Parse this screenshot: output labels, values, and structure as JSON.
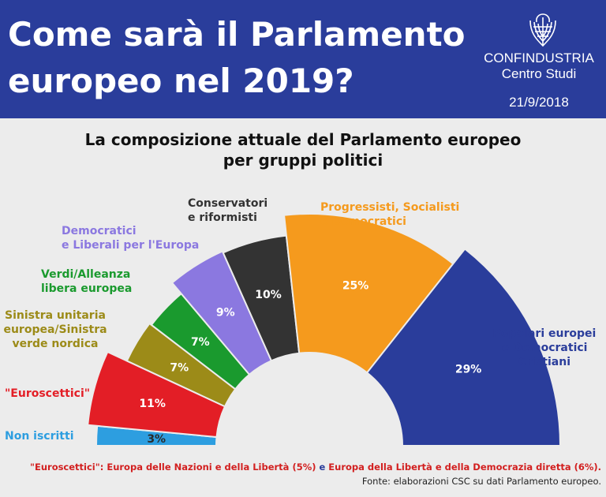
{
  "header": {
    "title_line1": "Come sarà il Parlamento",
    "title_line2": "europeo nel 2019?",
    "brand": "CONFINDUSTRIA",
    "brand_sub": "Centro Studi",
    "date": "21/9/2018",
    "logo_icon": "confindustria-eagle-icon"
  },
  "chart_data": {
    "type": "pie",
    "variant": "half-donut",
    "title": "La composizione attuale del Parlamento europeo",
    "subtitle": "per gruppi politici",
    "slices": [
      {
        "label": [
          "Non iscritti"
        ],
        "value": 3,
        "value_label": "3%",
        "color": "#2d9ee0"
      },
      {
        "label": [
          "\"Euroscettici\""
        ],
        "value": 11,
        "value_label": "11%",
        "color": "#e31e26"
      },
      {
        "label": [
          "Sinistra unitaria",
          "europea/Sinistra",
          "verde nordica"
        ],
        "value": 7,
        "value_label": "7%",
        "color": "#9c8b18"
      },
      {
        "label": [
          "Verdi/Alleanza",
          "libera europea"
        ],
        "value": 7,
        "value_label": "7%",
        "color": "#1a9a2e"
      },
      {
        "label": [
          "Democratici",
          "e Liberali per l'Europa"
        ],
        "value": 9,
        "value_label": "9%",
        "color": "#8b78e0"
      },
      {
        "label": [
          "Conservatori",
          "e riformisti"
        ],
        "value": 10,
        "value_label": "10%",
        "color": "#333333"
      },
      {
        "label": [
          "Progressisti, Socialisti",
          "e Democratici"
        ],
        "value": 25,
        "value_label": "25%",
        "color": "#f59a1d"
      },
      {
        "label": [
          "Popolari europei",
          "e Democratici",
          "Cristiani"
        ],
        "value": 29,
        "value_label": "29%",
        "color": "#2a3d9b"
      }
    ]
  },
  "footnote": {
    "part1": "\"Euroscettici\": Europa delle Nazioni e della Libertà (5%)",
    "part2": " e ",
    "part3": "Europa della Libertà e della Democrazia diretta (6%).",
    "source": "Fonte: elaborazioni CSC su dati Parlamento europeo."
  }
}
